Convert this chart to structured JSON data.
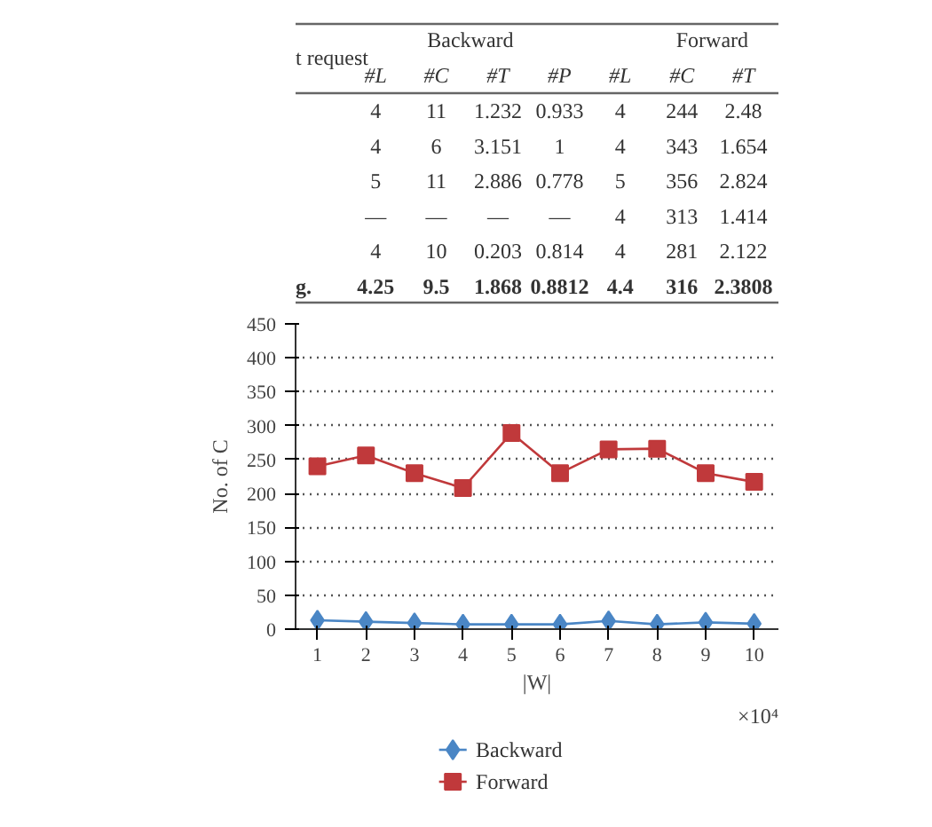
{
  "chart_data": [
    {
      "type": "other",
      "annotations": [
        "t request",
        "Backward",
        "Forward",
        "#L",
        "#C",
        "#T",
        "#P",
        "#L",
        "#C",
        "#T",
        "4",
        "11",
        "1.232",
        "0.933",
        "4",
        "244",
        "2.48",
        "4",
        "6",
        "3.151",
        "1",
        "4",
        "343",
        "1.654",
        "5",
        "11",
        "2.886",
        "0.778",
        "5",
        "356",
        "2.824",
        "—",
        "—",
        "—",
        "—",
        "4",
        "313",
        "1.414",
        "4",
        "10",
        "0.203",
        "0.814",
        "4",
        "281",
        "2.122",
        "g.",
        "4.25",
        "9.5",
        "1.868",
        "0.8812",
        "4.4",
        "316",
        "2.3808"
      ]
    },
    {
      "type": "line",
      "xlabel": "|W|",
      "ylabel": "No. of C",
      "annotations": [
        "×10⁴"
      ],
      "categories": [
        "1",
        "2",
        "3",
        "4",
        "5",
        "6",
        "7",
        "8",
        "9",
        "10"
      ],
      "ylim": [
        0,
        450
      ],
      "yticks": [
        0,
        50,
        100,
        150,
        200,
        250,
        300,
        350,
        400,
        450
      ],
      "grid": "y",
      "legend": "bottom",
      "series": [
        {
          "name": "Backward",
          "color": "#4a86c5",
          "marker": "diamond",
          "values": [
            13,
            11,
            9,
            7,
            7,
            7,
            12,
            7,
            10,
            8
          ]
        },
        {
          "name": "Forward",
          "color": "#c0393b",
          "marker": "square",
          "values": [
            240,
            256,
            230,
            208,
            289,
            230,
            265,
            266,
            230,
            217
          ]
        }
      ]
    }
  ]
}
